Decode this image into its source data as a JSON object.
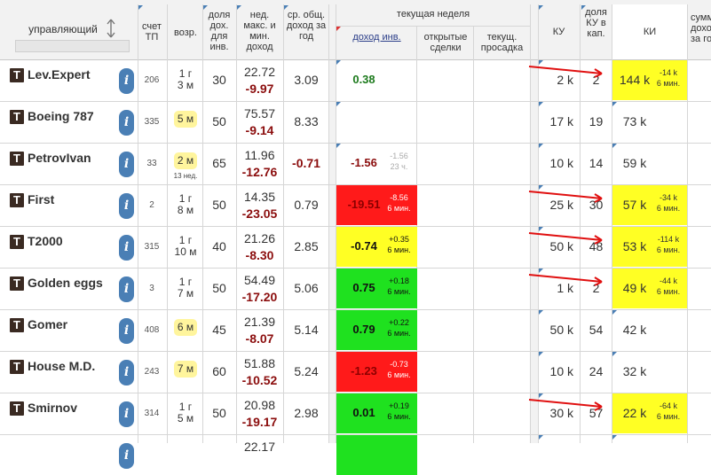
{
  "header": {
    "manager": "управляющий",
    "account": "счет ТП",
    "age": "возр.",
    "share_income": "доля дох. для инв.",
    "week_minmax": "нед. макс. и мин. доход",
    "avg_income": "ср. общ. доход за год",
    "current_week": "текущая неделя",
    "income_inv": "доход инв.",
    "open_deals": "открытые сделки",
    "current_drawdown": "текущ. просадка",
    "ku": "КУ",
    "ku_share": "доля КУ в кап.",
    "ki": "КИ",
    "cut_right": "сумм дохо за го"
  },
  "colors": {
    "red": "#ff1a1a",
    "yellow": "#ffff24",
    "green": "#1fe11f",
    "accent_blue": "#4a7fb5",
    "dark_red": "#8b0d0d"
  },
  "icons": {
    "sort": "sort-updown-icon",
    "info": "info-icon",
    "badge": "manager-type-icon",
    "arrow": "red-arrow-icon"
  },
  "rows": [
    {
      "badge": "T",
      "name": "Lev.Expert",
      "info": "i",
      "account": "206",
      "age": [
        "1 г",
        "3 м"
      ],
      "age_highlight": false,
      "age_sub": "",
      "share": "30",
      "week_max": "22.72",
      "week_min": "-9.97",
      "avg": "3.09",
      "avg_neg": false,
      "income": "0.38",
      "income_color": "plain-green",
      "income_sub": [
        "",
        ""
      ],
      "ku": "2 k",
      "ku_share": "2",
      "ki": "144 k",
      "ki_sub": [
        "-14 k",
        "6 мин."
      ],
      "ki_highlight": true,
      "arrow": true
    },
    {
      "badge": "T",
      "name": "Boeing 787",
      "info": "i",
      "account": "335",
      "age": [
        "5 м"
      ],
      "age_highlight": true,
      "age_sub": "",
      "share": "50",
      "week_max": "75.57",
      "week_min": "-9.14",
      "avg": "8.33",
      "avg_neg": false,
      "income": "",
      "income_color": "none",
      "income_sub": [
        "",
        ""
      ],
      "ku": "17 k",
      "ku_share": "19",
      "ki": "73 k",
      "ki_sub": [
        "",
        ""
      ],
      "ki_highlight": false,
      "arrow": false
    },
    {
      "badge": "T",
      "name": "PetrovIvan",
      "info": "i",
      "account": "33",
      "age": [
        "2 м"
      ],
      "age_highlight": true,
      "age_sub": "13 нед.",
      "share": "65",
      "week_max": "11.96",
      "week_min": "-12.76",
      "avg": "-0.71",
      "avg_neg": true,
      "income": "-1.56",
      "income_color": "plain-red",
      "income_sub": [
        "-1.56",
        "23 ч."
      ],
      "ku": "10 k",
      "ku_share": "14",
      "ki": "59 k",
      "ki_sub": [
        "",
        ""
      ],
      "ki_highlight": false,
      "arrow": false
    },
    {
      "badge": "T",
      "name": "First",
      "info": "i",
      "account": "2",
      "age": [
        "1 г",
        "8 м"
      ],
      "age_highlight": false,
      "age_sub": "",
      "share": "50",
      "week_max": "14.35",
      "week_min": "-23.05",
      "avg": "0.79",
      "avg_neg": false,
      "income": "-19.51",
      "income_color": "red",
      "income_sub": [
        "-8.56",
        "6 мин."
      ],
      "ku": "25 k",
      "ku_share": "30",
      "ki": "57 k",
      "ki_sub": [
        "-34 k",
        "6 мин."
      ],
      "ki_highlight": true,
      "arrow": true
    },
    {
      "badge": "T",
      "name": "T2000",
      "info": "i",
      "account": "315",
      "age": [
        "1 г",
        "10 м"
      ],
      "age_highlight": false,
      "age_sub": "",
      "share": "40",
      "week_max": "21.26",
      "week_min": "-8.30",
      "avg": "2.85",
      "avg_neg": false,
      "income": "-0.74",
      "income_color": "yellow",
      "income_sub": [
        "+0.35",
        "6 мин."
      ],
      "ku": "50 k",
      "ku_share": "48",
      "ki": "53 k",
      "ki_sub": [
        "-114 k",
        "6 мин."
      ],
      "ki_highlight": true,
      "arrow": true
    },
    {
      "badge": "T",
      "name": "Golden eggs",
      "info": "i",
      "account": "3",
      "age": [
        "1 г",
        "7 м"
      ],
      "age_highlight": false,
      "age_sub": "",
      "share": "50",
      "week_max": "54.49",
      "week_min": "-17.20",
      "avg": "5.06",
      "avg_neg": false,
      "income": "0.75",
      "income_color": "green",
      "income_sub": [
        "+0.18",
        "6 мин."
      ],
      "ku": "1 k",
      "ku_share": "2",
      "ki": "49 k",
      "ki_sub": [
        "-44 k",
        "6 мин."
      ],
      "ki_highlight": true,
      "arrow": true
    },
    {
      "badge": "T",
      "name": "Gomer",
      "info": "i",
      "account": "408",
      "age": [
        "6 м"
      ],
      "age_highlight": true,
      "age_sub": "",
      "share": "45",
      "week_max": "21.39",
      "week_min": "-8.07",
      "avg": "5.14",
      "avg_neg": false,
      "income": "0.79",
      "income_color": "green",
      "income_sub": [
        "+0.22",
        "6 мин."
      ],
      "ku": "50 k",
      "ku_share": "54",
      "ki": "42 k",
      "ki_sub": [
        "",
        ""
      ],
      "ki_highlight": false,
      "arrow": false
    },
    {
      "badge": "T",
      "name": "House M.D.",
      "info": "i",
      "account": "243",
      "age": [
        "7 м"
      ],
      "age_highlight": true,
      "age_sub": "",
      "share": "60",
      "week_max": "51.88",
      "week_min": "-10.52",
      "avg": "5.24",
      "avg_neg": false,
      "income": "-1.23",
      "income_color": "red",
      "income_sub": [
        "-0.73",
        "6 мин."
      ],
      "ku": "10 k",
      "ku_share": "24",
      "ki": "32 k",
      "ki_sub": [
        "",
        ""
      ],
      "ki_highlight": false,
      "arrow": false
    },
    {
      "badge": "T",
      "name": "Smirnov",
      "info": "i",
      "account": "314",
      "age": [
        "1 г",
        "5 м"
      ],
      "age_highlight": false,
      "age_sub": "",
      "share": "50",
      "week_max": "20.98",
      "week_min": "-19.17",
      "avg": "2.98",
      "avg_neg": false,
      "income": "0.01",
      "income_color": "green",
      "income_sub": [
        "+0.19",
        "6 мин."
      ],
      "ku": "30 k",
      "ku_share": "57",
      "ki": "22 k",
      "ki_sub": [
        "-64 k",
        "6 мин."
      ],
      "ki_highlight": true,
      "arrow": true
    },
    {
      "badge": "",
      "name": "",
      "info": "i",
      "account": "",
      "age": [
        ""
      ],
      "age_highlight": false,
      "age_sub": "",
      "share": "",
      "week_max": "22.17",
      "week_min": "",
      "avg": "",
      "avg_neg": false,
      "income": "",
      "income_color": "green",
      "income_sub": [
        "",
        ""
      ],
      "ku": "",
      "ku_share": "",
      "ki": "",
      "ki_sub": [
        "",
        ""
      ],
      "ki_highlight": false,
      "arrow": false
    }
  ]
}
